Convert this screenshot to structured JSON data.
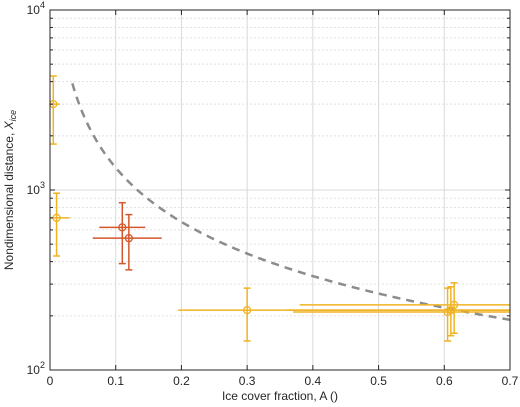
{
  "chart_data": {
    "type": "scatter",
    "xlabel": "Ice cover fraction, A ()",
    "ylabel_main": "Nondimensional distance, ",
    "ylabel_var": "X",
    "ylabel_sub": "ice",
    "xlim": [
      0,
      0.7
    ],
    "ylim": [
      100,
      10000
    ],
    "y_scale": "log",
    "grid": "on",
    "x_ticks": [
      {
        "value": 0,
        "label": "0"
      },
      {
        "value": 0.1,
        "label": "0.1"
      },
      {
        "value": 0.2,
        "label": "0.2"
      },
      {
        "value": 0.3,
        "label": "0.3"
      },
      {
        "value": 0.4,
        "label": "0.4"
      },
      {
        "value": 0.5,
        "label": "0.5"
      },
      {
        "value": 0.6,
        "label": "0.6"
      },
      {
        "value": 0.7,
        "label": "0.7"
      }
    ],
    "y_ticks": [
      {
        "value": 100,
        "base": "10",
        "exp": "2"
      },
      {
        "value": 1000,
        "base": "10",
        "exp": "3"
      },
      {
        "value": 10000,
        "base": "10",
        "exp": "4"
      }
    ],
    "colors": {
      "series_a": "#f0b323",
      "series_b": "#d4572a",
      "fit": "#8c8c8c",
      "grid": "#d9d9d9",
      "grid_minor": "#e1e1e1",
      "axis": "#262626"
    },
    "series": [
      {
        "color_key": "series_a",
        "points": [
          {
            "x": 0.005,
            "y": 3000,
            "xerr": [
              0,
              0.015
            ],
            "yerr": [
              1800,
              4300
            ]
          },
          {
            "x": 0.01,
            "y": 700,
            "xerr": [
              0,
              0.03
            ],
            "yerr": [
              430,
              960
            ]
          },
          {
            "x": 0.3,
            "y": 215,
            "xerr": [
              0.195,
              0.7
            ],
            "yerr": [
              145,
              285
            ]
          },
          {
            "x": 0.605,
            "y": 210,
            "xerr": [
              0.37,
              0.7
            ],
            "yerr": [
              145,
              285
            ]
          },
          {
            "x": 0.61,
            "y": 215,
            "xerr": [
              0.36,
              0.7
            ],
            "yerr": [
              155,
              290
            ]
          },
          {
            "x": 0.615,
            "y": 230,
            "xerr": [
              0.38,
              0.7
            ],
            "yerr": [
              160,
              305
            ]
          }
        ]
      },
      {
        "color_key": "series_b",
        "points": [
          {
            "x": 0.11,
            "y": 620,
            "xerr": [
              0.075,
              0.145
            ],
            "yerr": [
              390,
              850
            ]
          },
          {
            "x": 0.12,
            "y": 540,
            "xerr": [
              0.065,
              0.17
            ],
            "yerr": [
              360,
              730
            ]
          }
        ]
      }
    ],
    "fit_curve": {
      "style": "dashed",
      "formula": "y = 133 / x",
      "coefficient": 133,
      "x_start": 0.034,
      "x_end": 0.7
    }
  }
}
